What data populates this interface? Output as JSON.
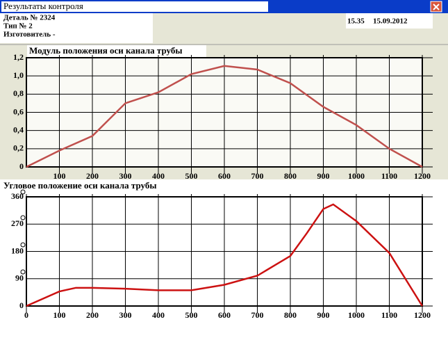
{
  "window": {
    "title": "Результаты контроля"
  },
  "header": {
    "lines": [
      "Деталь № 2324",
      "Тип № 2",
      "Изготовитель -"
    ],
    "time": "15.35",
    "date": "15.09.2012"
  },
  "chart_data": [
    {
      "type": "line",
      "title": "Модуль положения оси канала трубы",
      "x": [
        0,
        100,
        200,
        300,
        400,
        500,
        600,
        700,
        800,
        900,
        1000,
        1100,
        1200
      ],
      "series": [
        {
          "color": "#c0504d",
          "values": [
            0,
            0.18,
            0.34,
            0.7,
            0.82,
            1.02,
            1.11,
            1.07,
            0.92,
            0.66,
            0.46,
            0.2,
            0
          ]
        }
      ],
      "xlim": [
        0,
        1200
      ],
      "ylim": [
        0,
        1.2
      ],
      "xticks": [
        100,
        200,
        300,
        400,
        500,
        600,
        700,
        800,
        900,
        1000,
        1100,
        1200
      ],
      "yticks": [
        0,
        {
          "value": 0.2,
          "label": "0,2"
        },
        {
          "value": 0.4,
          "label": "0,4"
        },
        {
          "value": 0.6,
          "label": "0,6"
        },
        {
          "value": 0.8,
          "label": "0,8"
        },
        {
          "value": 1.0,
          "label": "1,0"
        },
        {
          "value": 1.2,
          "label": "1,2"
        }
      ],
      "grid": true
    },
    {
      "type": "line",
      "title": "Угловое положение оси канала трубы",
      "x": [
        0,
        100,
        150,
        200,
        300,
        400,
        500,
        600,
        700,
        800,
        850,
        900,
        930,
        1000,
        1100,
        1200
      ],
      "series": [
        {
          "color": "#cc1111",
          "values": [
            0,
            48,
            60,
            60,
            57,
            52,
            52,
            70,
            100,
            165,
            240,
            320,
            335,
            280,
            175,
            0
          ]
        }
      ],
      "xlim": [
        0,
        1200
      ],
      "ylim": [
        0,
        360
      ],
      "xticks": [
        0,
        100,
        200,
        300,
        400,
        500,
        600,
        700,
        800,
        900,
        1000,
        1100,
        1200
      ],
      "yticks": [
        0,
        90,
        180,
        270,
        360
      ],
      "grid": true
    }
  ]
}
